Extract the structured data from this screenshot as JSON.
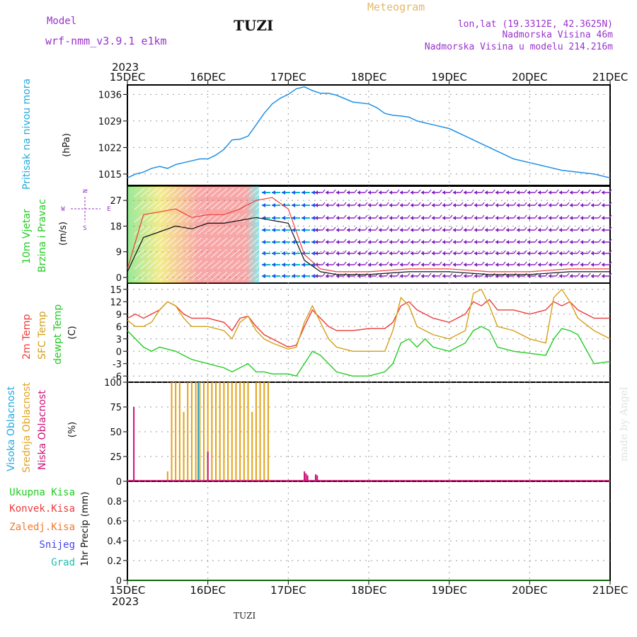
{
  "header": {
    "model_label": "Model",
    "model_name": "wrf-nmm_v3.9.1 e1km",
    "station": "TUZI",
    "title": "Meteogram",
    "lonlat": "lon,lat (19.3312E, 42.3625N)",
    "altitude": "Nadmorska Visina 46m",
    "model_altitude": "Nadmorska Visina u modelu 214.216m",
    "footer_station": "TUZI",
    "credit": "made by Angel"
  },
  "time_axis": {
    "year": "2023",
    "ticks": [
      "15DEC",
      "16DEC",
      "17DEC",
      "18DEC",
      "19DEC",
      "20DEC",
      "21DEC"
    ],
    "range_days": [
      0,
      6
    ]
  },
  "colors": {
    "pressure": "#1e90e6",
    "t2m": "#ee3b3b",
    "sfc": "#d4a017",
    "dew": "#22cc22",
    "low_cloud": "#cc1177",
    "mid_cloud": "#e3a21a",
    "high_cloud": "#22aadd",
    "purple": "#9933cc"
  },
  "panel_labels": {
    "pressure": [
      "Pritisak na nivou mora",
      "(hPa)"
    ],
    "wind": [
      "10m Vjetar",
      "Brzina i Pravac",
      "(m/s)"
    ],
    "wind_compass": [
      "N",
      "S",
      "W",
      "E"
    ],
    "temp": [
      "2m Temp",
      "SFC Temp",
      "dewpt Temp",
      "(C)"
    ],
    "cloud": [
      "Visoka Oblacnost",
      "Srednja Oblacnost",
      "Niska Oblacnost",
      "(%)"
    ],
    "precip_legend": [
      "Ukupna Kisa",
      "Konvek.Kisa",
      "Zaledj.Kisa",
      "Snijeg",
      "Grad"
    ],
    "precip_axis": "1hr Precip (mm)"
  },
  "chart_data": [
    {
      "type": "line",
      "name": "pressure",
      "ylim": [
        1012,
        1038.5
      ],
      "yticks": [
        1015,
        1022,
        1029,
        1036
      ],
      "x": [
        0,
        0.1,
        0.2,
        0.3,
        0.4,
        0.5,
        0.6,
        0.8,
        0.9,
        1.0,
        1.1,
        1.2,
        1.3,
        1.4,
        1.5,
        1.6,
        1.7,
        1.8,
        1.9,
        2.0,
        2.1,
        2.2,
        2.3,
        2.4,
        2.5,
        2.6,
        2.8,
        3.0,
        3.1,
        3.2,
        3.3,
        3.4,
        3.5,
        3.6,
        3.8,
        4.0,
        4.2,
        4.4,
        4.6,
        4.8,
        5.0,
        5.2,
        5.4,
        5.6,
        5.8,
        6.0
      ],
      "values": [
        1014,
        1015,
        1015.5,
        1016.5,
        1017,
        1016.5,
        1017.5,
        1018.5,
        1019,
        1019,
        1020,
        1021.5,
        1024,
        1024.2,
        1025,
        1028,
        1031,
        1033.5,
        1035,
        1036,
        1037.5,
        1038,
        1037,
        1036.3,
        1036.3,
        1035.8,
        1034,
        1033.5,
        1032.5,
        1031,
        1030.5,
        1030.3,
        1030,
        1029,
        1028,
        1027,
        1025,
        1023,
        1021,
        1019,
        1018,
        1017,
        1016,
        1015.5,
        1015,
        1014
      ]
    },
    {
      "type": "line",
      "name": "wind",
      "ylim": [
        -2,
        32
      ],
      "yticks": [
        0,
        9,
        18,
        27
      ],
      "x": [
        0,
        0.2,
        0.4,
        0.6,
        0.8,
        1.0,
        1.2,
        1.4,
        1.6,
        1.8,
        2.0,
        2.2,
        2.4,
        2.6,
        3.0,
        3.5,
        4.0,
        4.5,
        5.0,
        5.5,
        6.0
      ],
      "series": [
        {
          "values": [
            3,
            22,
            23,
            24,
            21,
            22,
            22,
            24,
            27,
            28,
            24,
            8,
            3,
            2,
            2,
            3,
            3,
            2,
            2,
            3,
            3
          ]
        },
        {
          "values": [
            2,
            14,
            16,
            18,
            17,
            19,
            19,
            20,
            21,
            20,
            19,
            6,
            2,
            1,
            1,
            2,
            2,
            1,
            1,
            2,
            2
          ]
        }
      ]
    },
    {
      "type": "line",
      "name": "temperature",
      "ylim": [
        -7.5,
        16.5
      ],
      "yticks": [
        -6,
        -3,
        0,
        3,
        6,
        9,
        12,
        15
      ],
      "x": [
        0,
        0.1,
        0.2,
        0.3,
        0.4,
        0.5,
        0.6,
        0.7,
        0.8,
        1.0,
        1.2,
        1.3,
        1.4,
        1.5,
        1.6,
        1.7,
        1.8,
        2.0,
        2.1,
        2.2,
        2.3,
        2.4,
        2.5,
        2.6,
        2.8,
        3.0,
        3.2,
        3.3,
        3.4,
        3.5,
        3.6,
        3.7,
        3.8,
        4.0,
        4.2,
        4.3,
        4.4,
        4.5,
        4.6,
        4.8,
        5.0,
        5.2,
        5.3,
        5.4,
        5.5,
        5.6,
        5.8,
        6.0
      ],
      "series": [
        {
          "name": "2m Temp",
          "values": [
            8,
            9,
            8,
            9,
            10,
            12,
            11,
            9,
            8,
            8,
            7,
            5,
            8,
            8.5,
            6,
            4,
            3,
            1,
            1.5,
            6,
            10,
            8,
            6,
            5,
            5,
            5.5,
            5.5,
            7,
            11,
            12,
            10,
            9,
            8,
            7,
            9,
            12,
            11,
            12.5,
            10,
            10,
            9,
            10,
            12,
            11,
            12,
            10,
            8,
            8
          ]
        },
        {
          "name": "SFC Temp",
          "values": [
            7.5,
            6,
            6,
            7,
            10,
            12,
            11,
            8,
            6,
            6,
            5,
            3,
            7,
            8.5,
            5,
            3,
            2,
            0.5,
            1,
            7,
            11,
            7,
            3,
            1,
            0,
            0,
            0,
            5,
            13,
            11,
            6,
            5,
            4,
            3,
            5,
            14,
            15,
            11,
            6,
            5,
            3,
            2,
            13,
            15,
            12,
            8,
            5,
            3
          ]
        },
        {
          "name": "dewpt Temp",
          "values": [
            5,
            3,
            1,
            0,
            1,
            0.5,
            0,
            -1,
            -2,
            -3,
            -4,
            -5,
            -4,
            -3,
            -5,
            -5,
            -5.5,
            -5.5,
            -6,
            -3,
            0,
            -1,
            -3,
            -5,
            -6,
            -6,
            -5,
            -3,
            2,
            3,
            1,
            3,
            1,
            0,
            2,
            5,
            6,
            5,
            1,
            0,
            -0.5,
            -1,
            3,
            5.5,
            5,
            4,
            -3,
            -2.5
          ]
        }
      ]
    },
    {
      "type": "bar",
      "name": "cloud",
      "ylim": [
        0,
        100
      ],
      "yticks": [
        0,
        25,
        50,
        75,
        100
      ],
      "series": [
        {
          "name": "Niska Oblacnost",
          "x": [
            0.08,
            1.0,
            2.2,
            2.22,
            2.24,
            2.34,
            2.36
          ],
          "values": [
            75,
            30,
            10,
            8,
            6,
            7,
            6
          ]
        },
        {
          "name": "Srednja Oblacnost",
          "x": [
            0.5,
            0.55,
            0.6,
            0.65,
            0.7,
            0.75,
            0.8,
            0.85,
            0.9,
            0.95,
            1.0,
            1.05,
            1.1,
            1.15,
            1.2,
            1.25,
            1.3,
            1.35,
            1.4,
            1.45,
            1.5,
            1.55,
            1.6,
            1.65,
            1.7,
            1.75
          ],
          "values": [
            10,
            100,
            100,
            100,
            70,
            100,
            100,
            100,
            100,
            100,
            100,
            100,
            100,
            100,
            100,
            100,
            100,
            100,
            100,
            100,
            100,
            70,
            100,
            100,
            100,
            100
          ]
        },
        {
          "name": "Visoka Oblacnost",
          "x": [
            0.88
          ],
          "values": [
            100
          ]
        }
      ]
    },
    {
      "type": "line",
      "name": "precip",
      "ylim": [
        0,
        1
      ],
      "yticks": [
        0,
        0.2,
        0.4,
        0.6,
        0.8
      ],
      "x": [
        0,
        6
      ],
      "values": [
        0,
        0
      ]
    }
  ]
}
